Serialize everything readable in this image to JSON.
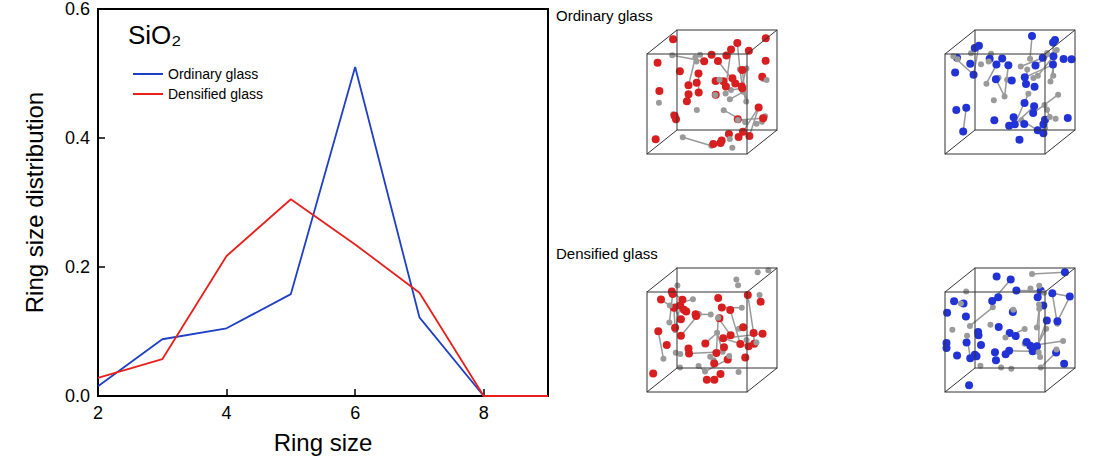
{
  "chart_data": {
    "type": "line",
    "annotation": "SiO₂",
    "x_label": "Ring size",
    "y_label": "Ring size distribution",
    "x": [
      2,
      3,
      4,
      5,
      6,
      7,
      8,
      9
    ],
    "series": [
      {
        "name": "Ordinary glass",
        "color": "#1f3fc4",
        "values": [
          0.015,
          0.088,
          0.105,
          0.158,
          0.51,
          0.122,
          0.0,
          0.0
        ]
      },
      {
        "name": "Densified glass",
        "color": "#e8201c",
        "values": [
          0.028,
          0.057,
          0.217,
          0.305,
          0.235,
          0.16,
          0.0,
          0.0
        ]
      }
    ],
    "xlim": [
      2,
      9
    ],
    "xticks": [
      2,
      4,
      6,
      8
    ],
    "ylim": [
      0,
      0.6
    ],
    "yticks": [
      {
        "value": 0,
        "label": "0.0"
      },
      0.2,
      0.4,
      0.6
    ],
    "legend": "upper left",
    "grid": false
  },
  "structure_images": {
    "rows": [
      {
        "label": "Ordinary glass"
      },
      {
        "label": "Densified glass"
      }
    ]
  }
}
